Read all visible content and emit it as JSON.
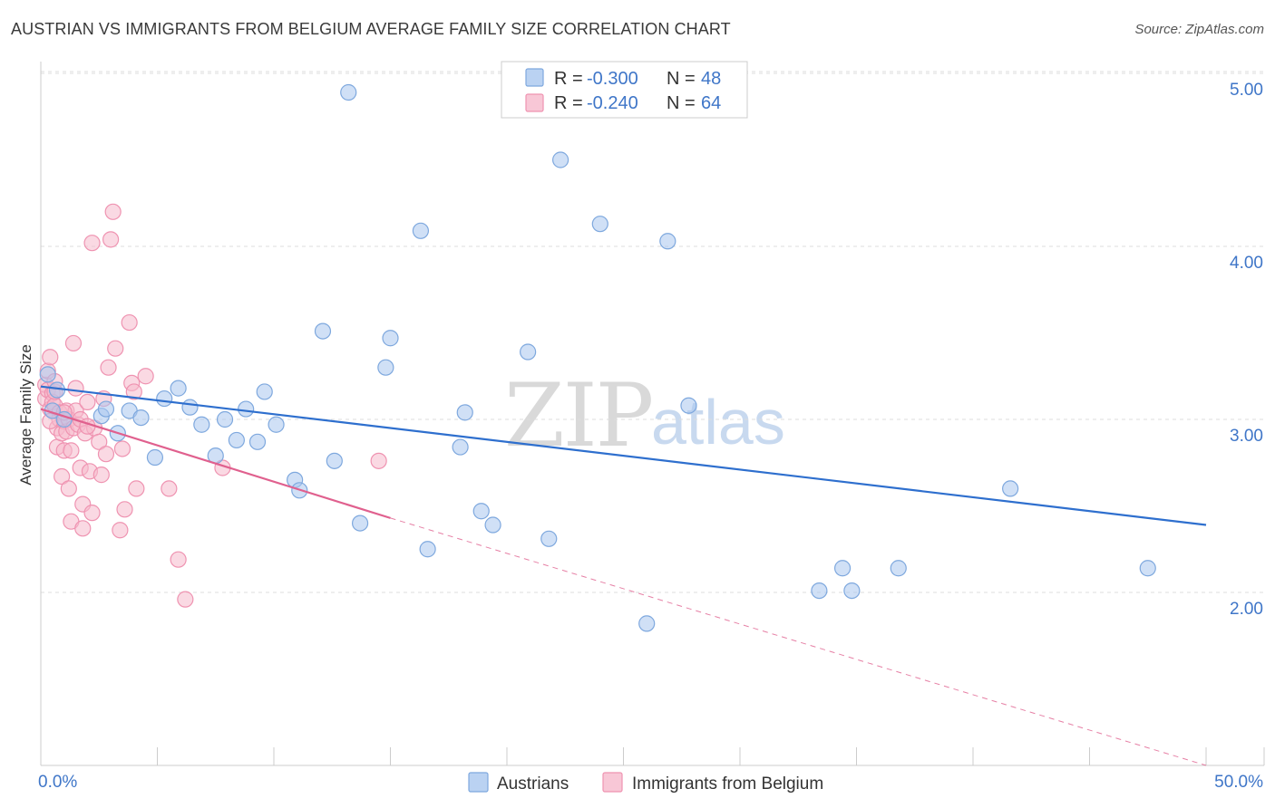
{
  "header": {
    "title": "AUSTRIAN VS IMMIGRANTS FROM BELGIUM AVERAGE FAMILY SIZE CORRELATION CHART",
    "source": "Source: ZipAtlas.com"
  },
  "watermark": {
    "zip": "ZIP",
    "atlas": "atlas"
  },
  "legend_box": {
    "rows": [
      {
        "r_label": "R =",
        "r_value": "-0.300",
        "n_label": "N =",
        "n_value": "48"
      },
      {
        "r_label": "R =",
        "r_value": "-0.240",
        "n_label": "N =",
        "n_value": "64"
      }
    ]
  },
  "bottom_legend": {
    "series1": "Austrians",
    "series2": "Immigrants from Belgium"
  },
  "colors": {
    "blue_fill": "#a9c7ef",
    "blue_stroke": "#7ea8de",
    "blue_line": "#2e6fce",
    "pink_fill": "#f6b9cc",
    "pink_stroke": "#ef93b1",
    "pink_line": "#e0608e",
    "tick_text": "#3f76c8",
    "grid": "#dddddd"
  },
  "chart_data": {
    "type": "scatter",
    "title": "AUSTRIAN VS IMMIGRANTS FROM BELGIUM AVERAGE FAMILY SIZE CORRELATION CHART",
    "xlabel": "",
    "ylabel": "Average Family Size",
    "x_tick_labels": [
      "0.0%",
      "50.0%"
    ],
    "y_tick_labels": [
      "2.00",
      "3.00",
      "4.00",
      "5.00"
    ],
    "xlim": [
      0,
      50
    ],
    "ylim": [
      1.0,
      5.1
    ],
    "grid": true,
    "legend_placement": "top-center",
    "series": [
      {
        "name": "Austrians",
        "r": -0.3,
        "n": 48,
        "trend": {
          "x": [
            0,
            50
          ],
          "y": [
            3.19,
            2.39
          ]
        },
        "points": [
          [
            0.3,
            3.26
          ],
          [
            0.7,
            3.17
          ],
          [
            2.6,
            3.02
          ],
          [
            2.8,
            3.06
          ],
          [
            3.3,
            2.92
          ],
          [
            3.8,
            3.05
          ],
          [
            4.3,
            3.01
          ],
          [
            4.9,
            2.78
          ],
          [
            5.3,
            3.12
          ],
          [
            5.9,
            3.18
          ],
          [
            6.4,
            3.07
          ],
          [
            6.9,
            2.97
          ],
          [
            7.5,
            2.79
          ],
          [
            7.9,
            3.0
          ],
          [
            8.4,
            2.88
          ],
          [
            8.8,
            3.06
          ],
          [
            9.3,
            2.87
          ],
          [
            9.6,
            3.16
          ],
          [
            10.1,
            2.97
          ],
          [
            10.9,
            2.65
          ],
          [
            11.1,
            2.59
          ],
          [
            12.1,
            3.51
          ],
          [
            12.6,
            2.76
          ],
          [
            13.2,
            4.89
          ],
          [
            13.7,
            2.4
          ],
          [
            14.8,
            3.3
          ],
          [
            15.0,
            3.47
          ],
          [
            16.3,
            4.09
          ],
          [
            16.6,
            2.25
          ],
          [
            18.0,
            2.84
          ],
          [
            18.2,
            3.04
          ],
          [
            18.9,
            2.47
          ],
          [
            19.4,
            2.39
          ],
          [
            20.9,
            3.39
          ],
          [
            21.8,
            2.31
          ],
          [
            22.3,
            4.5
          ],
          [
            24.0,
            4.13
          ],
          [
            26.0,
            1.82
          ],
          [
            26.9,
            4.03
          ],
          [
            27.8,
            3.08
          ],
          [
            33.4,
            2.01
          ],
          [
            34.4,
            2.14
          ],
          [
            34.8,
            2.01
          ],
          [
            36.8,
            2.14
          ],
          [
            41.6,
            2.6
          ],
          [
            47.5,
            2.14
          ],
          [
            0.5,
            3.05
          ],
          [
            1.0,
            3.0
          ]
        ]
      },
      {
        "name": "Immigrants from Belgium",
        "r": -0.24,
        "n": 64,
        "trend": {
          "x": [
            0,
            15
          ],
          "y": [
            3.06,
            2.43
          ]
        },
        "trend_dashed": {
          "x": [
            15,
            50
          ],
          "y": [
            2.43,
            1.0
          ]
        },
        "points": [
          [
            0.2,
            3.12
          ],
          [
            0.2,
            3.2
          ],
          [
            0.3,
            3.28
          ],
          [
            0.3,
            3.17
          ],
          [
            0.4,
            3.06
          ],
          [
            0.4,
            3.36
          ],
          [
            0.5,
            3.15
          ],
          [
            0.5,
            3.1
          ],
          [
            0.6,
            3.08
          ],
          [
            0.6,
            3.16
          ],
          [
            0.7,
            2.84
          ],
          [
            0.7,
            2.95
          ],
          [
            0.8,
            3.04
          ],
          [
            0.8,
            3.0
          ],
          [
            0.9,
            2.92
          ],
          [
            0.9,
            2.67
          ],
          [
            1.0,
            2.82
          ],
          [
            1.0,
            2.99
          ],
          [
            1.1,
            3.05
          ],
          [
            1.1,
            2.93
          ],
          [
            1.2,
            2.6
          ],
          [
            1.2,
            3.0
          ],
          [
            1.3,
            2.82
          ],
          [
            1.3,
            2.41
          ],
          [
            1.4,
            3.44
          ],
          [
            1.4,
            2.95
          ],
          [
            1.5,
            3.18
          ],
          [
            1.5,
            3.05
          ],
          [
            1.6,
            2.97
          ],
          [
            1.7,
            2.72
          ],
          [
            1.7,
            3.0
          ],
          [
            1.8,
            2.51
          ],
          [
            1.8,
            2.37
          ],
          [
            1.9,
            2.92
          ],
          [
            2.0,
            3.1
          ],
          [
            2.1,
            2.7
          ],
          [
            2.2,
            2.46
          ],
          [
            2.2,
            4.02
          ],
          [
            2.3,
            2.95
          ],
          [
            2.5,
            2.87
          ],
          [
            2.6,
            2.68
          ],
          [
            2.7,
            3.12
          ],
          [
            2.8,
            2.8
          ],
          [
            2.9,
            3.3
          ],
          [
            3.0,
            4.04
          ],
          [
            3.1,
            4.2
          ],
          [
            3.2,
            3.41
          ],
          [
            3.4,
            2.36
          ],
          [
            3.5,
            2.83
          ],
          [
            3.6,
            2.48
          ],
          [
            3.8,
            3.56
          ],
          [
            3.9,
            3.21
          ],
          [
            4.0,
            3.16
          ],
          [
            4.1,
            2.6
          ],
          [
            4.5,
            3.25
          ],
          [
            5.5,
            2.6
          ],
          [
            5.9,
            2.19
          ],
          [
            6.2,
            1.96
          ],
          [
            7.8,
            2.72
          ],
          [
            14.5,
            2.76
          ],
          [
            0.4,
            2.99
          ],
          [
            1.0,
            3.04
          ],
          [
            2.0,
            2.96
          ],
          [
            0.6,
            3.22
          ]
        ]
      }
    ]
  }
}
